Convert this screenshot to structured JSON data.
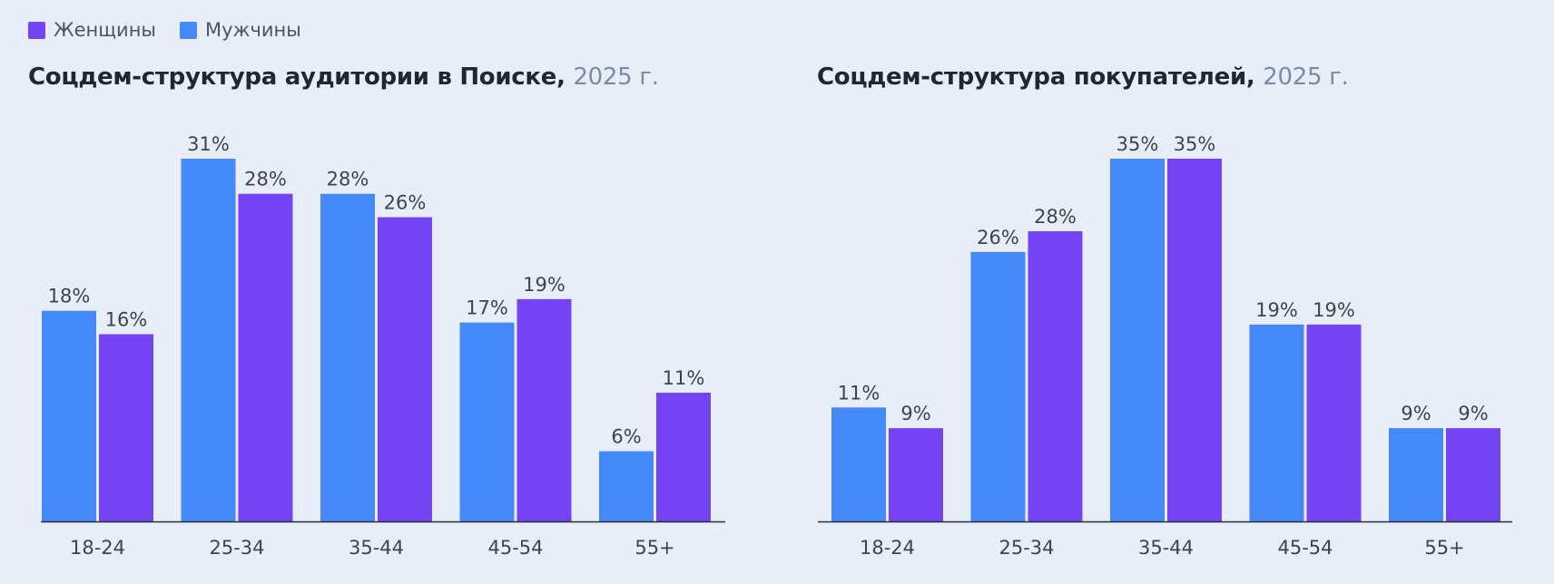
{
  "legend": [
    {
      "label": "Женщины",
      "color": "#7443f4"
    },
    {
      "label": "Мужчины",
      "color": "#4589f8"
    }
  ],
  "colors": {
    "Женщины": "#7443f4",
    "Мужчины": "#4589f8"
  },
  "chart_data": [
    {
      "type": "bar",
      "title": "Соцдем-структура аудитории в Поиске,",
      "title_year": "2025 г.",
      "categories": [
        "18-24",
        "25-34",
        "35-44",
        "45-54",
        "55+"
      ],
      "series": [
        {
          "name": "Мужчины",
          "values": [
            18,
            31,
            28,
            17,
            6
          ],
          "labels": [
            "18%",
            "31%",
            "28%",
            "17%",
            "6%"
          ]
        },
        {
          "name": "Женщины",
          "values": [
            16,
            28,
            26,
            19,
            11
          ],
          "labels": [
            "16%",
            "28%",
            "26%",
            "19%",
            "11%"
          ]
        }
      ],
      "ylim": [
        0,
        31
      ],
      "grid": false,
      "legend_placement": "top-left"
    },
    {
      "type": "bar",
      "title": "Соцдем-структура покупателей,",
      "title_year": "2025 г.",
      "categories": [
        "18-24",
        "25-34",
        "35-44",
        "45-54",
        "55+"
      ],
      "series": [
        {
          "name": "Мужчины",
          "values": [
            11,
            26,
            35,
            19,
            9
          ],
          "labels": [
            "11%",
            "26%",
            "35%",
            "19%",
            "9%"
          ]
        },
        {
          "name": "Женщины",
          "values": [
            9,
            28,
            35,
            19,
            9
          ],
          "labels": [
            "9%",
            "28%",
            "35%",
            "19%",
            "9%"
          ]
        }
      ],
      "ylim": [
        0,
        35
      ],
      "grid": false,
      "legend_placement": "top-left"
    }
  ]
}
